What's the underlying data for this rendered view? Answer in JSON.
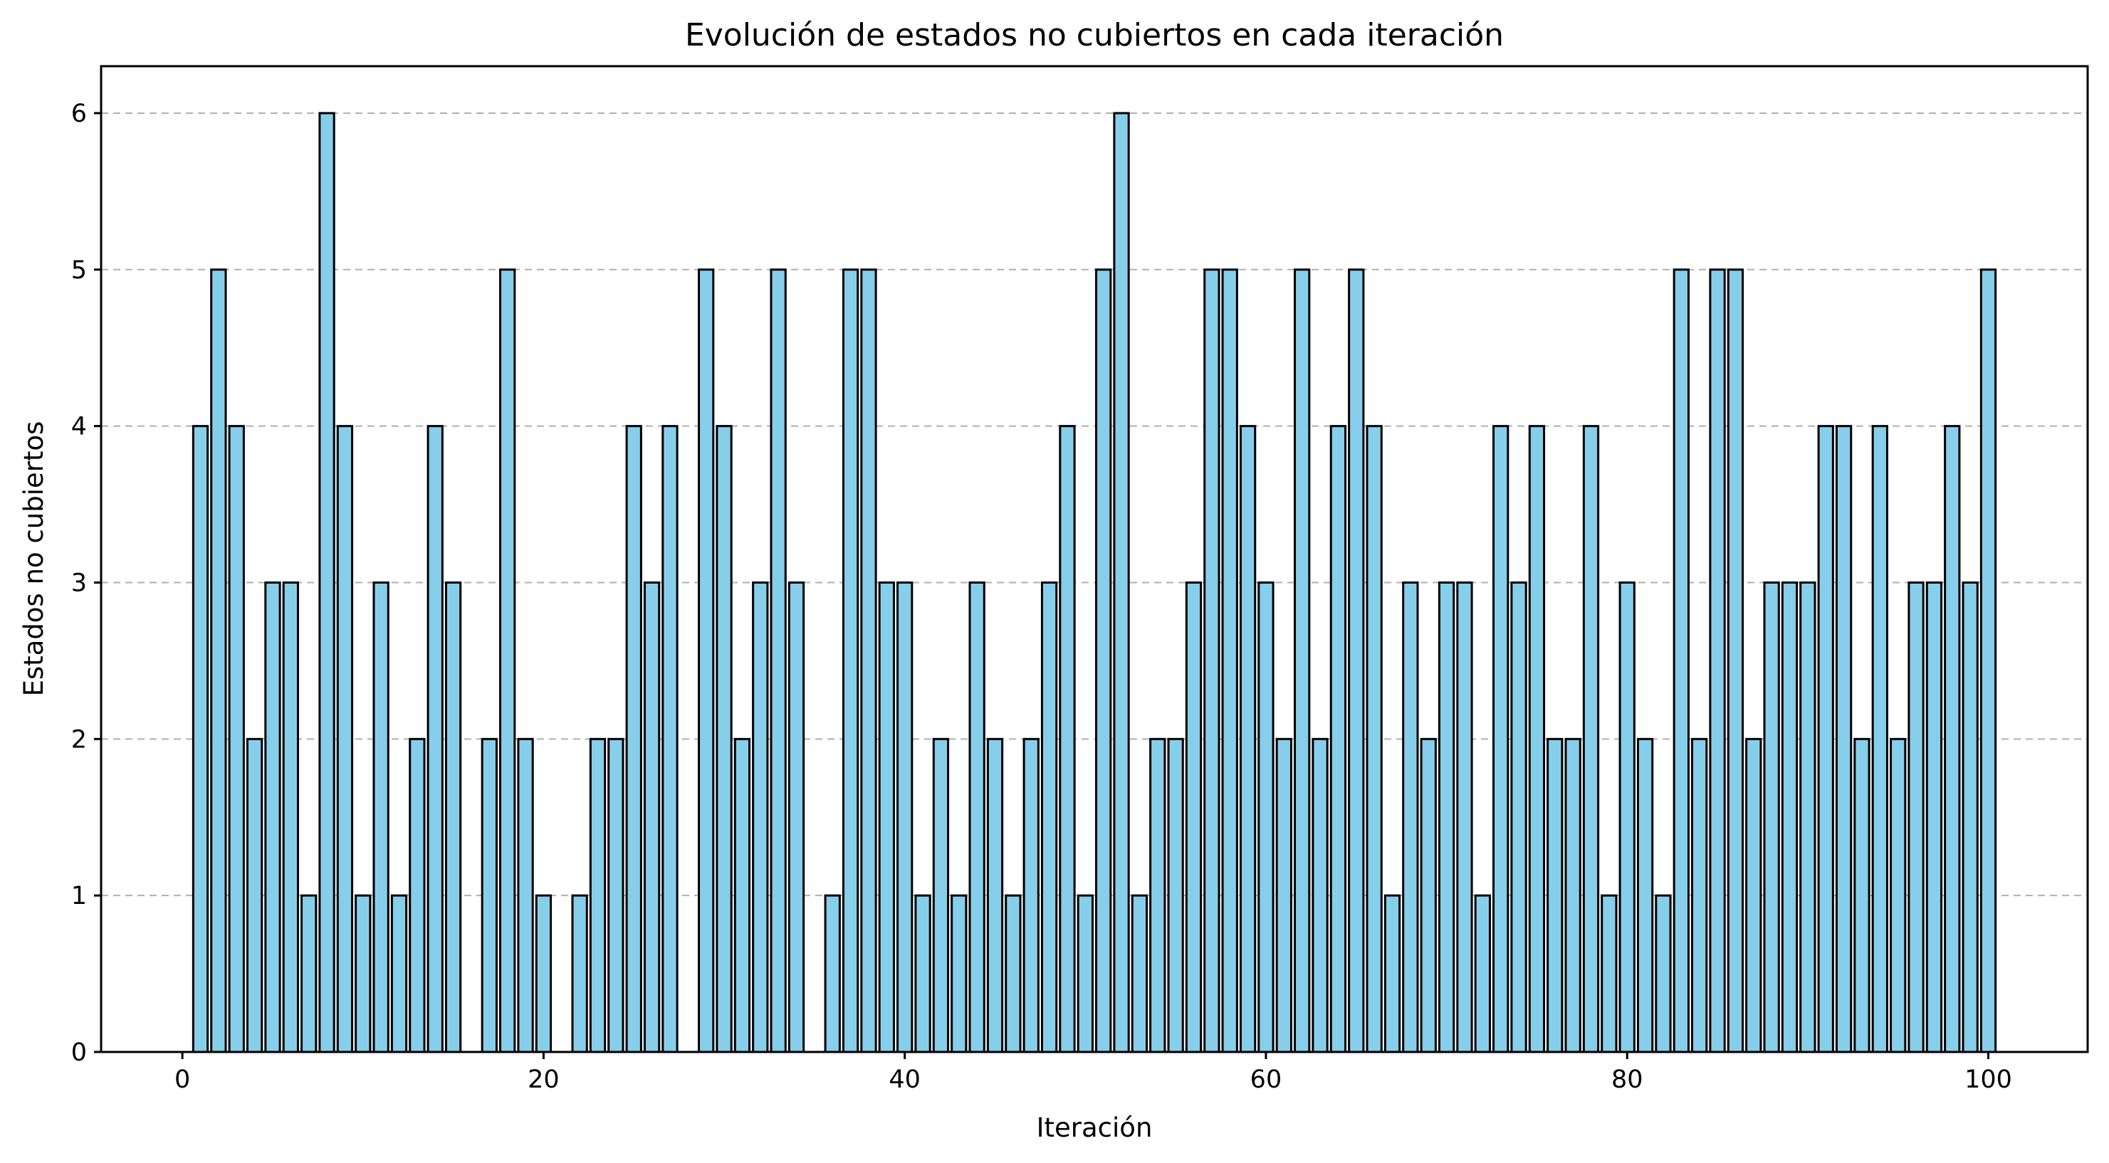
{
  "chart_data": {
    "type": "bar",
    "title": "Evolución de estados no cubiertos en cada iteración",
    "xlabel": "Iteración",
    "ylabel": "Estados no cubiertos",
    "x": [
      1,
      2,
      3,
      4,
      5,
      6,
      7,
      8,
      9,
      10,
      11,
      12,
      13,
      14,
      15,
      16,
      17,
      18,
      19,
      20,
      21,
      22,
      23,
      24,
      25,
      26,
      27,
      28,
      29,
      30,
      31,
      32,
      33,
      34,
      35,
      36,
      37,
      38,
      39,
      40,
      41,
      42,
      43,
      44,
      45,
      46,
      47,
      48,
      49,
      50,
      51,
      52,
      53,
      54,
      55,
      56,
      57,
      58,
      59,
      60,
      61,
      62,
      63,
      64,
      65,
      66,
      67,
      68,
      69,
      70,
      71,
      72,
      73,
      74,
      75,
      76,
      77,
      78,
      79,
      80,
      81,
      82,
      83,
      84,
      85,
      86,
      87,
      88,
      89,
      90,
      91,
      92,
      93,
      94,
      95,
      96,
      97,
      98,
      99,
      100
    ],
    "values": [
      4,
      5,
      4,
      2,
      3,
      3,
      1,
      6,
      4,
      1,
      3,
      1,
      2,
      4,
      3,
      0,
      2,
      5,
      2,
      1,
      0,
      1,
      2,
      2,
      4,
      3,
      4,
      0,
      5,
      4,
      2,
      3,
      5,
      3,
      0,
      1,
      5,
      5,
      3,
      3,
      1,
      2,
      1,
      3,
      2,
      1,
      2,
      3,
      4,
      1,
      5,
      6,
      1,
      2,
      2,
      3,
      5,
      5,
      4,
      3,
      2,
      5,
      2,
      4,
      5,
      4,
      1,
      3,
      2,
      3,
      3,
      1,
      4,
      3,
      4,
      2,
      2,
      4,
      1,
      3,
      2,
      1,
      5,
      2,
      5,
      5,
      2,
      3,
      3,
      3,
      4,
      4,
      2,
      4,
      2,
      3,
      3,
      4,
      3,
      5
    ],
    "xlim": [
      -4.5,
      105.5
    ],
    "ylim": [
      0,
      6.3
    ],
    "xticks": [
      "0",
      "20",
      "40",
      "60",
      "80",
      "100"
    ],
    "yticks": [
      "0",
      "1",
      "2",
      "3",
      "4",
      "5",
      "6"
    ],
    "grid": "y-dashed",
    "bar_color": "#87ceeb",
    "edge_color": "#000000"
  }
}
